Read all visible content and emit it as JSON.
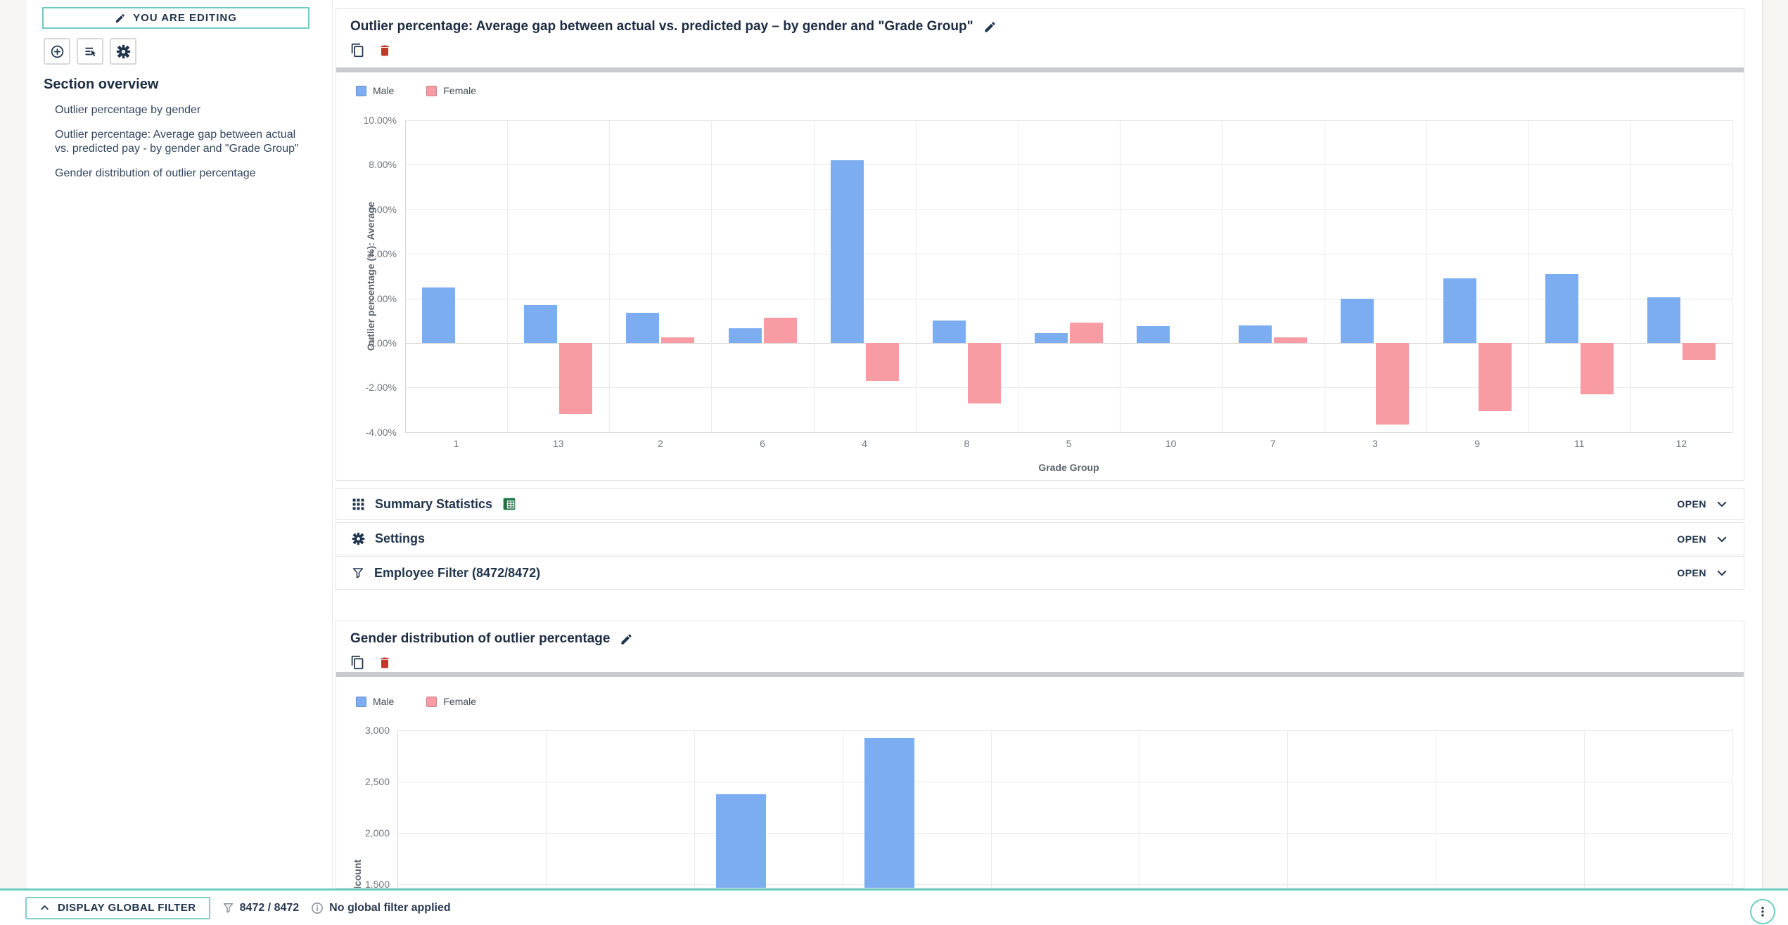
{
  "sidebar": {
    "editing_badge": "YOU ARE EDITING",
    "overview_title": "Section overview",
    "links": [
      "Outlier percentage by gender",
      "Outlier percentage: Average gap between actual vs. predicted pay - by gender and \"Grade Group\"",
      "Gender distribution of outlier percentage"
    ]
  },
  "panels": {
    "chart1_title": "Outlier percentage: Average gap between actual vs. predicted pay – by gender and \"Grade Group\"",
    "chart2_title": "Gender distribution of outlier percentage"
  },
  "legend": {
    "items": [
      {
        "label": "Male",
        "color": "#7cadf0"
      },
      {
        "label": "Female",
        "color": "#f89ba3"
      }
    ]
  },
  "accordion": {
    "rows": [
      {
        "label": "Summary Statistics",
        "state": "OPEN"
      },
      {
        "label": "Settings",
        "state": "OPEN"
      },
      {
        "label": "Employee Filter (8472/8472)",
        "state": "OPEN"
      }
    ]
  },
  "footer": {
    "filter_button": "DISPLAY GLOBAL FILTER",
    "count": "8472 / 8472",
    "status": "No global filter applied"
  },
  "chart_data": [
    {
      "type": "bar",
      "title": "Outlier percentage: Average gap between actual vs. predicted pay – by gender and \"Grade Group\"",
      "categories": [
        "1",
        "13",
        "2",
        "6",
        "4",
        "8",
        "5",
        "10",
        "7",
        "3",
        "9",
        "11",
        "12"
      ],
      "series": [
        {
          "name": "Male",
          "color": "#7cadf0",
          "values": [
            2.5,
            1.7,
            1.35,
            0.65,
            8.2,
            1.0,
            0.45,
            0.75,
            0.8,
            2.0,
            2.9,
            3.1,
            2.05
          ]
        },
        {
          "name": "Female",
          "color": "#f89ba3",
          "values": [
            null,
            -3.2,
            0.25,
            1.15,
            -1.7,
            -2.7,
            0.9,
            null,
            0.25,
            -3.65,
            -3.05,
            -2.3,
            -0.75
          ]
        }
      ],
      "xlabel": "Grade Group",
      "ylabel": "Outlier percentage (%): Average",
      "ylim": [
        -4,
        10
      ],
      "ytick_values": [
        10,
        8,
        6,
        4,
        2,
        0,
        -2,
        -4
      ],
      "ytick_labels": [
        "10.00%",
        "8.00%",
        "6.00%",
        "4.00%",
        "2.00%",
        "0.00%",
        "-2.00%",
        "-4.00%"
      ],
      "grid": true,
      "legend_position": "top-left"
    },
    {
      "type": "bar",
      "title": "Gender distribution of outlier percentage",
      "ylabel": "Headcount",
      "ytick_values": [
        3000,
        2500,
        2000,
        1500
      ],
      "ytick_labels": [
        "3,000",
        "2,500",
        "2,000",
        "1,500"
      ],
      "columns": 9,
      "note": "Chart truncated by viewport fold; only two Male bars visible above the cut",
      "visible_bars": [
        {
          "series": "Male",
          "column": 3,
          "value": 2380
        },
        {
          "series": "Male",
          "column": 4,
          "value": 2925
        }
      ],
      "grid": true,
      "legend_position": "top-left"
    }
  ]
}
